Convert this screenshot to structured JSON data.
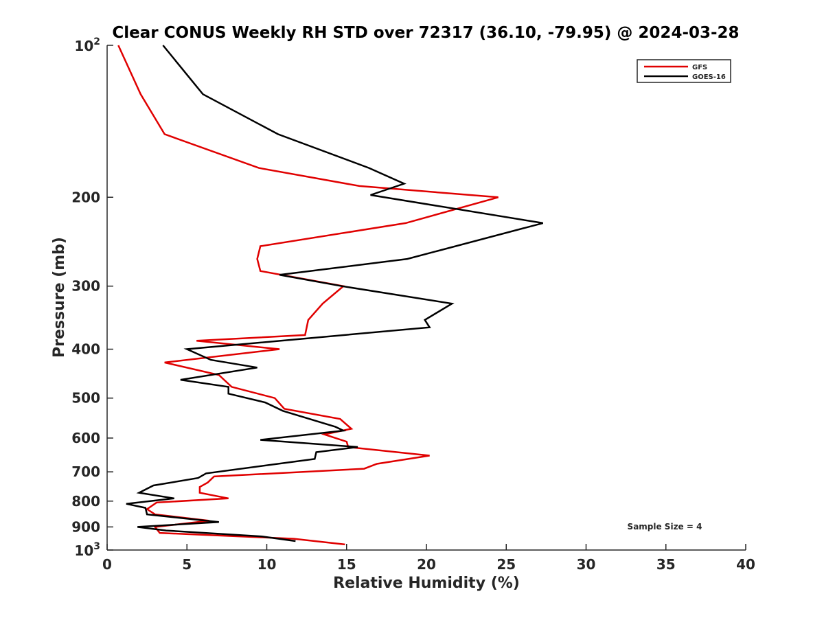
{
  "chart_data": {
    "type": "line",
    "title": "Clear CONUS Weekly RH STD over 72317 (36.10, -79.95) @ 2024-03-28",
    "xlabel": "Relative Humidity (%)",
    "ylabel": "Pressure (mb)",
    "xlim": [
      0,
      40
    ],
    "ylim": [
      100,
      1000
    ],
    "yscale": "log",
    "y_reversed": true,
    "grid": false,
    "legend_position": "top-right",
    "x_ticks": [
      "0",
      "5",
      "10",
      "15",
      "20",
      "25",
      "30",
      "35",
      "40"
    ],
    "y_ticks": [
      {
        "value": 100,
        "base": "10",
        "exp": "2"
      },
      {
        "value": 200,
        "label": "200"
      },
      {
        "value": 300,
        "label": "300"
      },
      {
        "value": 400,
        "label": "400"
      },
      {
        "value": 500,
        "label": "500"
      },
      {
        "value": 600,
        "label": "600"
      },
      {
        "value": 700,
        "label": "700"
      },
      {
        "value": 800,
        "label": "800"
      },
      {
        "value": 900,
        "label": "900"
      },
      {
        "value": 1000,
        "base": "10",
        "exp": "3"
      }
    ],
    "annotation": "Sample Size = 4",
    "series": [
      {
        "name": "GFS",
        "color": "#e00000",
        "points": [
          [
            0.7,
            100
          ],
          [
            2.1,
            125
          ],
          [
            3.6,
            150
          ],
          [
            9.5,
            175
          ],
          [
            15.8,
            190
          ],
          [
            24.5,
            200
          ],
          [
            18.7,
            225
          ],
          [
            9.6,
            250
          ],
          [
            9.4,
            265
          ],
          [
            9.6,
            280
          ],
          [
            14.8,
            300
          ],
          [
            13.5,
            325
          ],
          [
            12.6,
            350
          ],
          [
            12.4,
            375
          ],
          [
            5.6,
            385
          ],
          [
            10.8,
            400
          ],
          [
            3.6,
            425
          ],
          [
            7.0,
            450
          ],
          [
            7.8,
            475
          ],
          [
            10.5,
            500
          ],
          [
            11.1,
            525
          ],
          [
            14.6,
            550
          ],
          [
            15.3,
            575
          ],
          [
            13.6,
            590
          ],
          [
            15.0,
            610
          ],
          [
            15.1,
            625
          ],
          [
            20.2,
            650
          ],
          [
            16.9,
            675
          ],
          [
            16.1,
            690
          ],
          [
            6.7,
            715
          ],
          [
            6.3,
            735
          ],
          [
            5.8,
            750
          ],
          [
            5.8,
            770
          ],
          [
            7.6,
            790
          ],
          [
            3.1,
            805
          ],
          [
            2.5,
            830
          ],
          [
            3.0,
            850
          ],
          [
            6.4,
            875
          ],
          [
            3.0,
            900
          ],
          [
            3.3,
            925
          ],
          [
            11.7,
            950
          ],
          [
            14.9,
            975
          ]
        ]
      },
      {
        "name": "GOES-16",
        "color": "#000000",
        "points": [
          [
            3.5,
            100
          ],
          [
            6.0,
            125
          ],
          [
            10.7,
            150
          ],
          [
            16.4,
            175
          ],
          [
            18.6,
            188
          ],
          [
            16.5,
            198
          ],
          [
            27.3,
            225
          ],
          [
            18.8,
            265
          ],
          [
            10.8,
            285
          ],
          [
            14.7,
            300
          ],
          [
            21.6,
            325
          ],
          [
            19.9,
            350
          ],
          [
            20.2,
            362
          ],
          [
            5.0,
            400
          ],
          [
            6.5,
            420
          ],
          [
            9.4,
            435
          ],
          [
            4.6,
            460
          ],
          [
            7.6,
            475
          ],
          [
            7.6,
            490
          ],
          [
            9.9,
            510
          ],
          [
            11.0,
            530
          ],
          [
            14.3,
            570
          ],
          [
            14.8,
            580
          ],
          [
            9.6,
            605
          ],
          [
            15.7,
            625
          ],
          [
            13.1,
            640
          ],
          [
            13.0,
            660
          ],
          [
            6.2,
            705
          ],
          [
            5.7,
            720
          ],
          [
            2.9,
            745
          ],
          [
            2.0,
            770
          ],
          [
            4.2,
            790
          ],
          [
            1.2,
            810
          ],
          [
            2.4,
            825
          ],
          [
            2.5,
            850
          ],
          [
            7.0,
            880
          ],
          [
            1.9,
            900
          ],
          [
            3.7,
            915
          ],
          [
            9.7,
            940
          ],
          [
            11.8,
            960
          ]
        ]
      }
    ]
  }
}
